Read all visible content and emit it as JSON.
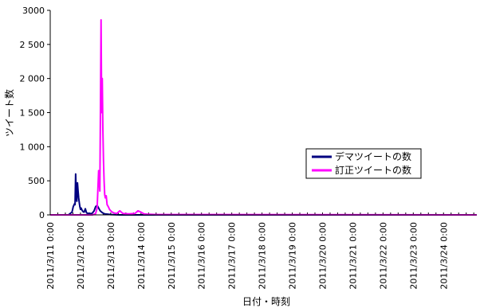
{
  "chart_data": {
    "type": "line",
    "title": "",
    "xlabel": "日付・時刻",
    "ylabel": "ツイート数",
    "ylim": [
      0,
      3000
    ],
    "yticks": [
      0,
      500,
      1000,
      1500,
      2000,
      2500,
      3000
    ],
    "ytick_labels": [
      "0",
      "500",
      "1 000",
      "1 500",
      "2 000",
      "2 500",
      "3000"
    ],
    "x_start": "2011/3/11 0:00",
    "x_end_days": 14.1,
    "xtick_labels": [
      "2011/3/11 0:00",
      "2011/3/12 0:00",
      "2011/3/13 0:00",
      "2011/3/14 0:00",
      "2011/3/15 0:00",
      "2011/3/16 0:00",
      "2011/3/17 0:00",
      "2011/3/18 0:00",
      "2011/3/19 0:00",
      "2011/3/20 0:00",
      "2011/3/21 0:00",
      "2011/3/22 0:00",
      "2011/3/23 0:00",
      "2011/3/24 0:00"
    ],
    "grid": false,
    "legend_position": "right",
    "series": [
      {
        "name": "デマツイートの数",
        "color": "#000080",
        "x": [
          0,
          0.6,
          0.72,
          0.76,
          0.8,
          0.82,
          0.84,
          0.86,
          0.88,
          0.9,
          0.92,
          0.94,
          0.96,
          0.98,
          1.0,
          1.02,
          1.05,
          1.08,
          1.12,
          1.16,
          1.2,
          1.25,
          1.3,
          1.35,
          1.4,
          1.45,
          1.5,
          1.55,
          1.6,
          1.65,
          1.7,
          1.75,
          1.8,
          1.9,
          2.0,
          2.3,
          14.1
        ],
        "y": [
          0,
          0,
          40,
          120,
          160,
          150,
          600,
          300,
          200,
          470,
          350,
          250,
          180,
          120,
          80,
          100,
          70,
          50,
          40,
          90,
          30,
          20,
          25,
          15,
          30,
          60,
          120,
          140,
          100,
          60,
          40,
          25,
          15,
          10,
          5,
          0,
          0
        ]
      },
      {
        "name": "訂正ツイートの数",
        "color": "#ff00ff",
        "x": [
          0,
          1.4,
          1.5,
          1.55,
          1.6,
          1.64,
          1.66,
          1.68,
          1.7,
          1.72,
          1.74,
          1.76,
          1.78,
          1.8,
          1.82,
          1.85,
          1.88,
          1.92,
          1.96,
          2.0,
          2.05,
          2.1,
          2.2,
          2.3,
          2.4,
          2.6,
          2.8,
          2.9,
          3.0,
          3.1,
          3.2,
          3.5,
          14.1
        ],
        "y": [
          0,
          0,
          20,
          100,
          650,
          350,
          1550,
          2860,
          1500,
          2000,
          1250,
          800,
          500,
          300,
          250,
          280,
          150,
          120,
          80,
          60,
          40,
          30,
          20,
          60,
          20,
          15,
          20,
          60,
          40,
          15,
          10,
          5,
          0
        ]
      }
    ]
  }
}
